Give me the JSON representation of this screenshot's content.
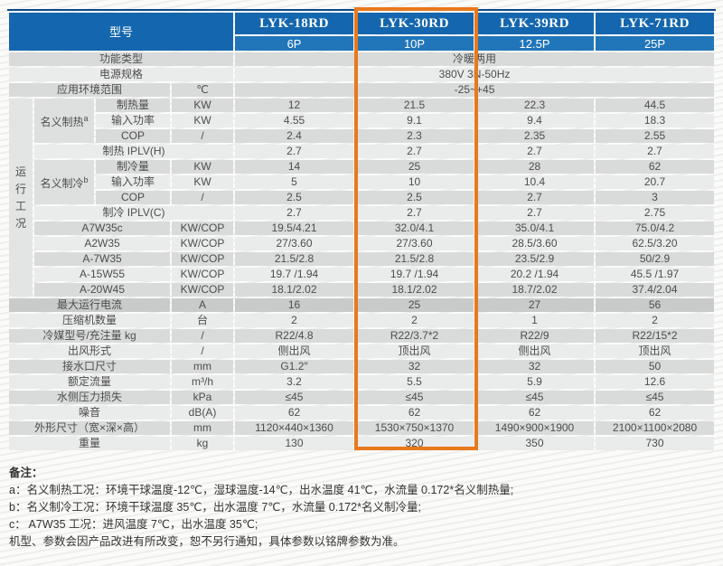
{
  "colors": {
    "header_blue": "#1467ae",
    "header_blue_light": "#2176ba",
    "header_top_edge": "#0c4a86",
    "highlight_orange": "#e8791d",
    "band_dark": "#d9dada",
    "band_light": "#eaebeb",
    "band_darker": "#c9cbcb",
    "text": "#4d4d4d"
  },
  "header": {
    "model_label": "型号",
    "models": [
      {
        "name": "LYK-18RD",
        "hp": "6P",
        "highlighted": false
      },
      {
        "name": "LYK-30RD",
        "hp": "10P",
        "highlighted": true
      },
      {
        "name": "LYK-39RD",
        "hp": "12.5P",
        "highlighted": false
      },
      {
        "name": "LYK-71RD",
        "hp": "25P",
        "highlighted": false
      }
    ]
  },
  "groups": {
    "operating": {
      "label": "运行工况",
      "row_count": 13
    },
    "heating": {
      "label": "名义制热",
      "sup": "a",
      "row_count": 3
    },
    "cooling": {
      "label": "名义制冷",
      "sup": "b",
      "row_count": 3
    }
  },
  "rows": [
    {
      "type": "full",
      "label": "功能类型",
      "value": "冷暖两用",
      "band": "d"
    },
    {
      "type": "full",
      "label": "电源规格",
      "value": "380V 3N-50Hz",
      "band": "l"
    },
    {
      "type": "unit_full",
      "label": "应用环境范围",
      "unit": "℃",
      "value": "-25~+45",
      "band": "d"
    },
    {
      "type": "sub",
      "label": "制热量",
      "unit": "KW",
      "values": [
        "12",
        "21.5",
        "22.3",
        "44.5"
      ],
      "band": "d"
    },
    {
      "type": "sub",
      "label": "输入功率",
      "unit": "KW",
      "values": [
        "4.55",
        "9.1",
        "9.4",
        "18.3"
      ],
      "band": "l"
    },
    {
      "type": "sub",
      "label": "COP",
      "unit": "/",
      "values": [
        "2.4",
        "2.3",
        "2.35",
        "2.55"
      ],
      "band": "d"
    },
    {
      "type": "groupwide",
      "label": "制热 IPLV(H)",
      "values": [
        "2.7",
        "2.7",
        "2.7",
        "2.7"
      ],
      "band": "l"
    },
    {
      "type": "sub",
      "label": "制冷量",
      "unit": "KW",
      "values": [
        "14",
        "25",
        "28",
        "62"
      ],
      "band": "d"
    },
    {
      "type": "sub",
      "label": "输入功率",
      "unit": "KW",
      "values": [
        "5",
        "10",
        "10.4",
        "20.7"
      ],
      "band": "l"
    },
    {
      "type": "sub",
      "label": "COP",
      "unit": "/",
      "values": [
        "2.5",
        "2.5",
        "2.7",
        "3"
      ],
      "band": "d"
    },
    {
      "type": "groupwide",
      "label": "制冷 IPLV(C)",
      "values": [
        "2.7",
        "2.7",
        "2.7",
        "2.75"
      ],
      "band": "l"
    },
    {
      "type": "cond",
      "label": "A7W35c",
      "unit": "KW/COP",
      "values": [
        "19.5/4.21",
        "32.0/4.1",
        "35.0/4.1",
        "75.0/4.2"
      ],
      "band": "d"
    },
    {
      "type": "cond",
      "label": "A2W35",
      "unit": "KW/COP",
      "values": [
        "27/3.60",
        "27/3.60",
        "28.5/3.60",
        "62.5/3.20"
      ],
      "band": "l"
    },
    {
      "type": "cond",
      "label": "A-7W35",
      "unit": "KW/COP",
      "values": [
        "21.5/2.8",
        "21.5/2.8",
        "23.5/2.9",
        "50/2.9"
      ],
      "band": "d"
    },
    {
      "type": "cond",
      "label": "A-15W55",
      "unit": "KW/COP",
      "values": [
        "19.7 /1.94",
        "19.7 /1.94",
        "20.2 /1.94",
        "45.5 /1.97"
      ],
      "band": "l"
    },
    {
      "type": "cond",
      "label": "A-20W45",
      "unit": "KW/COP",
      "values": [
        "18.1/2.02",
        "18.1/2.02",
        "18.7/2.02",
        "37.4/2.04"
      ],
      "band": "d"
    },
    {
      "type": "flat",
      "label": "最大运行电流",
      "unit": "A",
      "values": [
        "16",
        "25",
        "27",
        "56"
      ],
      "band": "dd"
    },
    {
      "type": "flat",
      "label": "压缩机数量",
      "unit": "台",
      "values": [
        "2",
        "2",
        "1",
        "2"
      ],
      "band": "l"
    },
    {
      "type": "flat",
      "label": "冷媒型号/充注量 kg",
      "unit": "/",
      "values": [
        "R22/4.8",
        "R22/3.7*2",
        "R22/9",
        "R22/15*2"
      ],
      "band": "d"
    },
    {
      "type": "flat",
      "label": "出风形式",
      "unit": "/",
      "values": [
        "侧出风",
        "顶出风",
        "侧出风",
        "顶出风"
      ],
      "band": "l"
    },
    {
      "type": "flat",
      "label": "接水口尺寸",
      "unit": "mm",
      "values": [
        "G1.2″",
        "32",
        "32",
        "50"
      ],
      "band": "d"
    },
    {
      "type": "flat",
      "label": "额定流量",
      "unit": "m³/h",
      "values": [
        "3.2",
        "5.5",
        "5.9",
        "12.6"
      ],
      "band": "l"
    },
    {
      "type": "flat",
      "label": "水侧压力损失",
      "unit": "kPa",
      "values": [
        "≤45",
        "≤45",
        "≤45",
        "≤45"
      ],
      "band": "d"
    },
    {
      "type": "flat",
      "label": "噪音",
      "unit": "dB(A)",
      "values": [
        "62",
        "62",
        "62",
        "62"
      ],
      "band": "l"
    },
    {
      "type": "flat",
      "label": "外形尺寸（宽×深×高）",
      "unit": "mm",
      "values": [
        "1120×440×1360",
        "1530×750×1370",
        "1490×900×1900",
        "2100×1100×2080"
      ],
      "band": "d"
    },
    {
      "type": "flat",
      "label": "重量",
      "unit": "kg",
      "values": [
        "130",
        "320",
        "350",
        "730"
      ],
      "band": "l"
    }
  ],
  "notes": {
    "title": "备注：",
    "lines": [
      "a：名义制热工况：环境干球温度-12℃，湿球温度-14℃，出水温度 41℃，水流量 0.172*名义制热量;",
      "b：名义制冷工况：环境干球温度 35℃，出水温度 7℃，水流量 0.172*名义制冷量;",
      "c： A7W35 工况：进风温度 7℃，出水温度 35℃;",
      "机型、参数会因产品改进有所改变，恕不另行通知，具体参数以铭牌参数为准。"
    ]
  }
}
